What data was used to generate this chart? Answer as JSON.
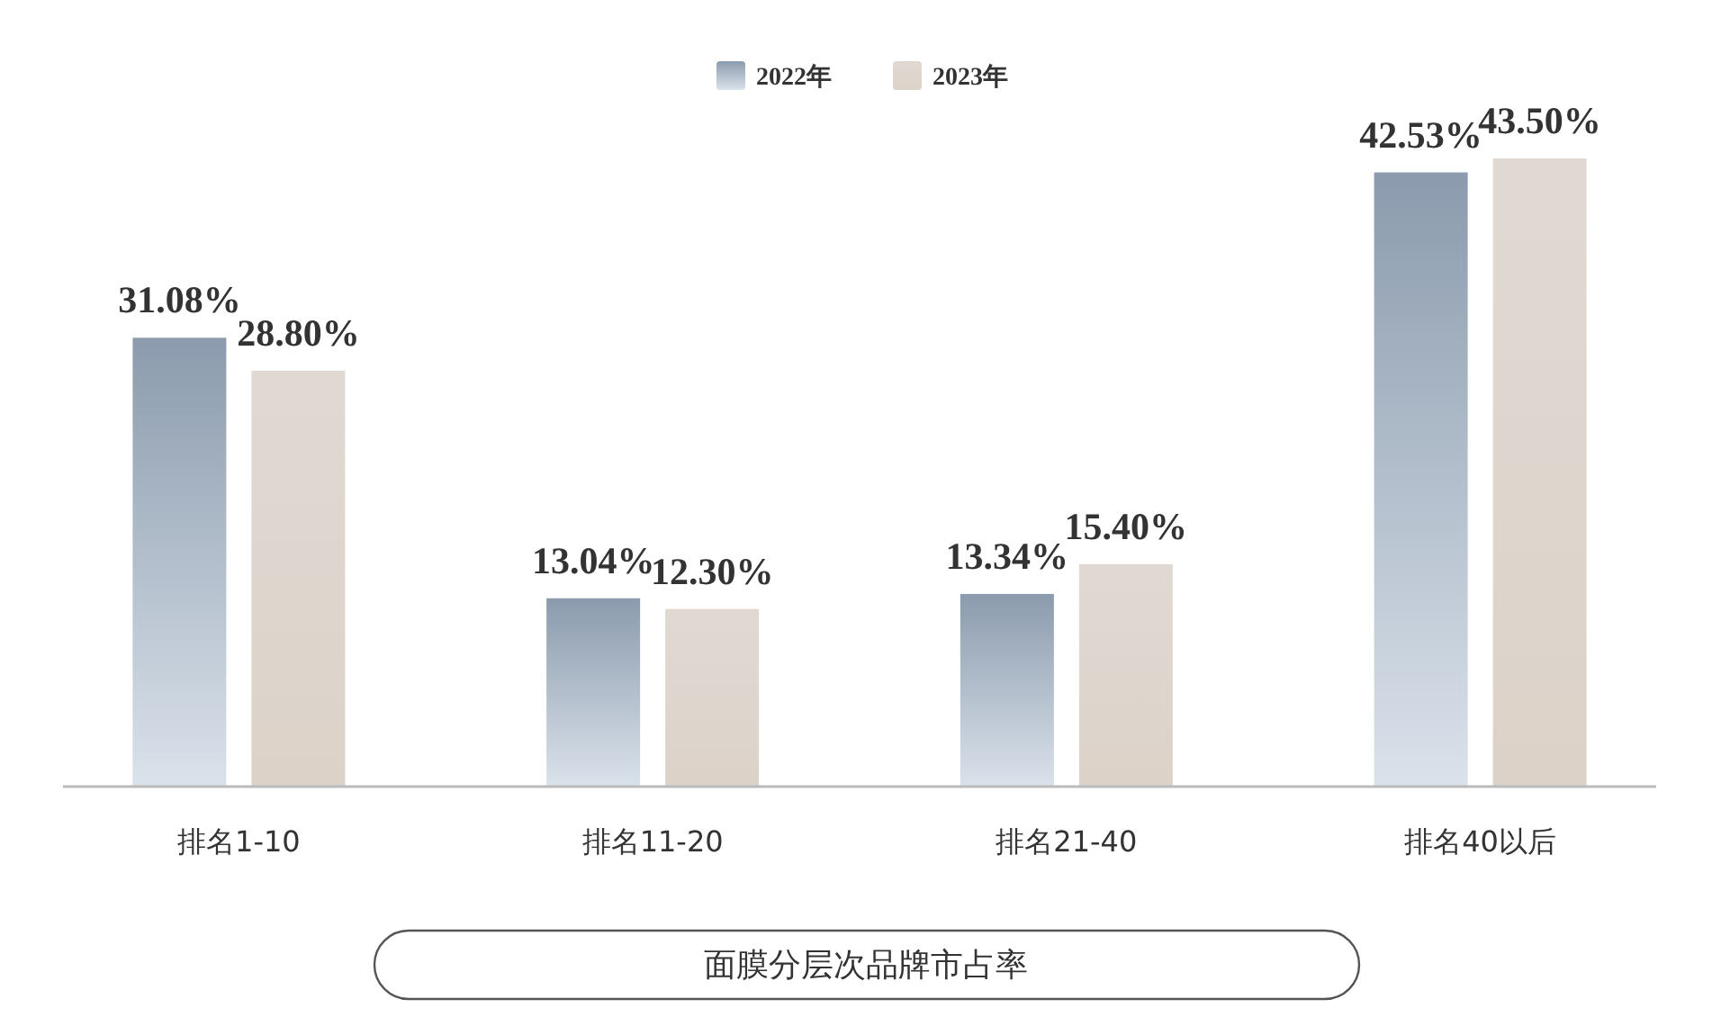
{
  "chart_data": {
    "type": "bar",
    "title": "面膜分层次品牌市占率",
    "categories": [
      "排名1-10",
      "排名11-20",
      "排名21-40",
      "排名40以后"
    ],
    "series": [
      {
        "name": "2022年",
        "color": "#a3b6cc",
        "values": [
          31.08,
          13.04,
          13.34,
          42.53
        ],
        "value_labels": [
          "31.08%",
          "13.04%",
          "13.34%",
          "42.53%"
        ]
      },
      {
        "name": "2023年",
        "color": "#e0d9d3",
        "values": [
          28.8,
          12.3,
          15.4,
          43.5
        ],
        "value_labels": [
          "28.80%",
          "12.30%",
          "15.40%",
          "43.50%"
        ]
      }
    ],
    "legend": "top"
  }
}
